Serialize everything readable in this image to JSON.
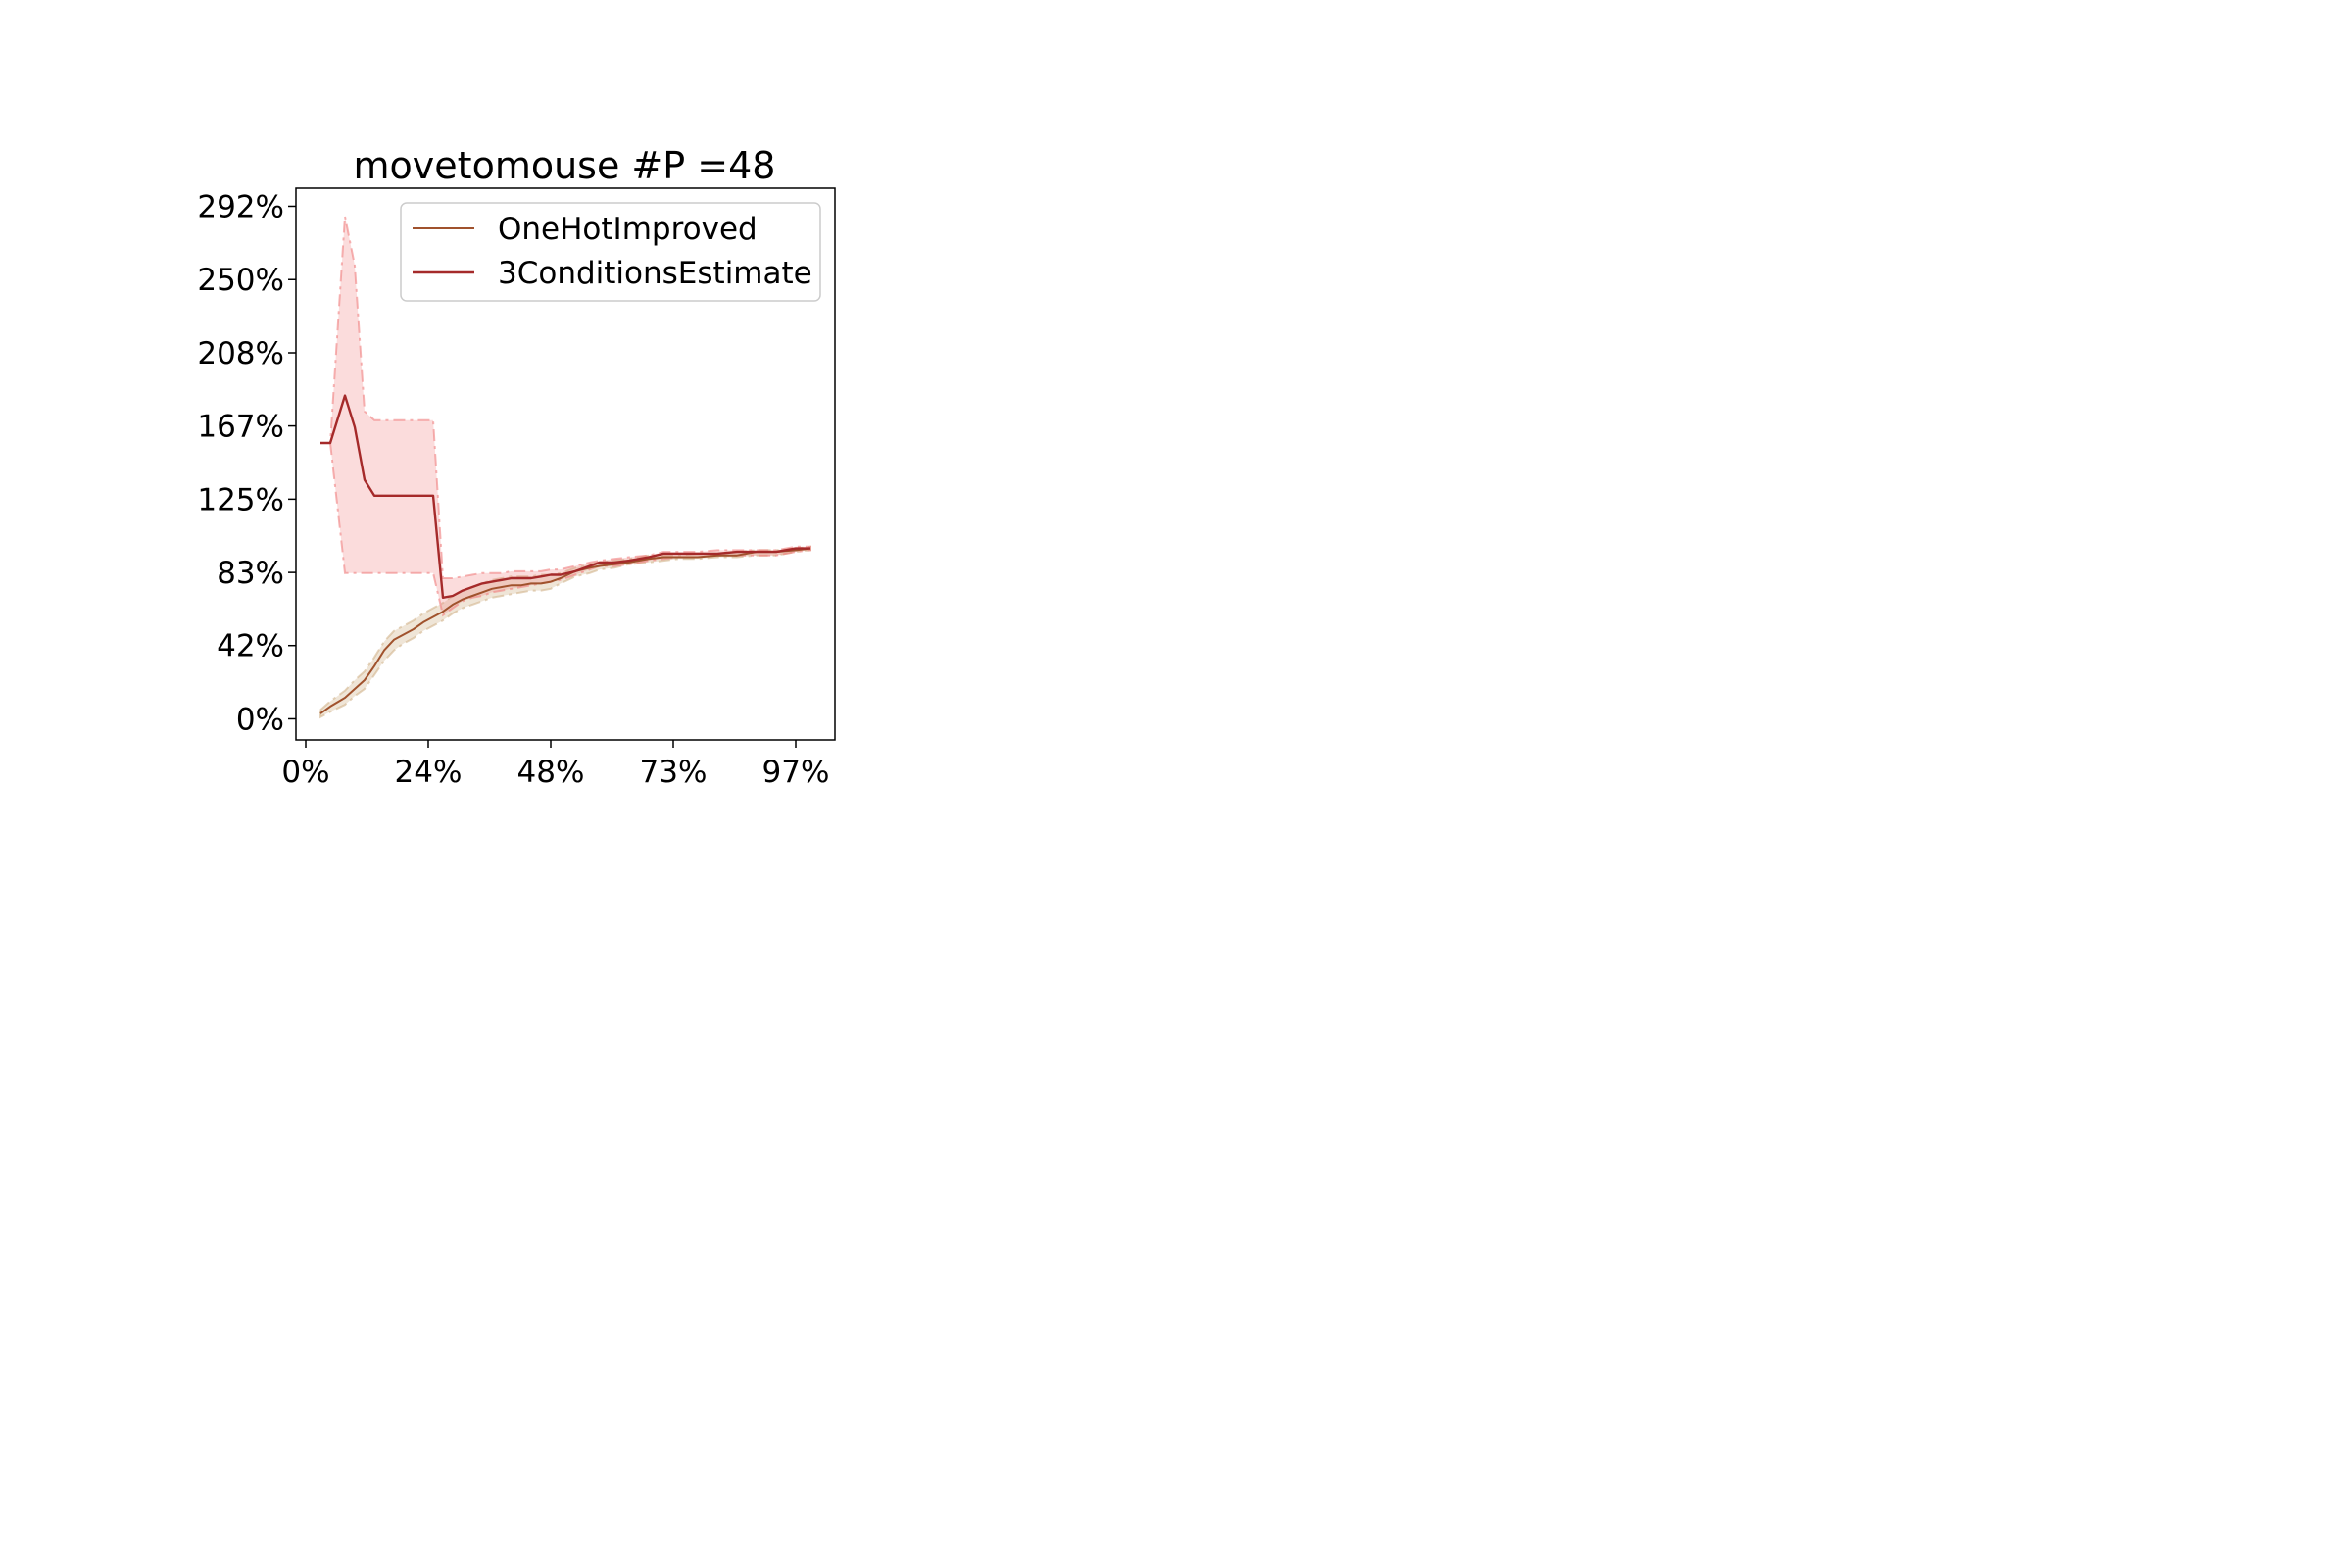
{
  "chart_data": {
    "type": "line",
    "title": "movetomouse #P =48",
    "xlabel": "",
    "ylabel": "",
    "xlim": [
      -2,
      108
    ],
    "ylim": [
      -12,
      302
    ],
    "x_ticks": [
      {
        "value": 0,
        "label": "0%"
      },
      {
        "value": 25,
        "label": "24%"
      },
      {
        "value": 50,
        "label": "48%"
      },
      {
        "value": 75,
        "label": "73%"
      },
      {
        "value": 100,
        "label": "97%"
      }
    ],
    "y_ticks": [
      {
        "value": 0,
        "label": "0%"
      },
      {
        "value": 41.7,
        "label": "42%"
      },
      {
        "value": 83.3,
        "label": "83%"
      },
      {
        "value": 125,
        "label": "125%"
      },
      {
        "value": 166.7,
        "label": "167%"
      },
      {
        "value": 208.3,
        "label": "208%"
      },
      {
        "value": 250,
        "label": "250%"
      },
      {
        "value": 291.7,
        "label": "292%"
      }
    ],
    "grid": false,
    "legend_position": "upper-right",
    "series": [
      {
        "name": "OneHotImproved",
        "color": "#a0522d",
        "band_color": "#d2b48c",
        "x": [
          3,
          5,
          8,
          10,
          12,
          14,
          16,
          18,
          20,
          22,
          24,
          26,
          28,
          30,
          32,
          34,
          36,
          38,
          40,
          42,
          44,
          46,
          48,
          50,
          52,
          55,
          58,
          60,
          63,
          66,
          70,
          73,
          76,
          80,
          84,
          88,
          92,
          96,
          100,
          103
        ],
        "y": [
          3,
          7,
          12,
          17,
          22,
          30,
          39,
          45,
          48,
          51,
          55,
          58,
          61,
          65,
          68,
          70,
          72,
          74,
          75,
          76,
          76,
          77,
          77,
          78,
          80,
          84,
          86,
          87,
          88,
          89,
          91,
          92,
          92,
          92,
          93,
          93,
          95,
          95,
          96,
          97
        ],
        "lower": [
          1,
          4,
          8,
          13,
          17,
          25,
          33,
          39,
          43,
          46,
          50,
          53,
          56,
          60,
          63,
          65,
          67,
          69,
          70,
          71,
          72,
          73,
          73,
          74,
          77,
          81,
          83,
          85,
          86,
          88,
          89,
          90,
          91,
          91,
          92,
          92,
          93,
          93,
          95,
          96
        ],
        "upper": [
          5,
          10,
          16,
          22,
          27,
          35,
          44,
          50,
          53,
          56,
          60,
          63,
          66,
          70,
          73,
          75,
          77,
          79,
          80,
          81,
          81,
          81,
          82,
          82,
          83,
          86,
          88,
          89,
          90,
          91,
          93,
          93,
          93,
          94,
          94,
          95,
          96,
          96,
          97,
          98
        ]
      },
      {
        "name": "3ConditionsEstimate",
        "color": "#a52a2a",
        "band_color": "#f08080",
        "x": [
          3,
          5,
          8,
          10,
          12,
          14,
          16,
          18,
          20,
          22,
          24,
          26,
          28,
          30,
          32,
          34,
          36,
          38,
          40,
          42,
          44,
          46,
          48,
          50,
          52,
          55,
          58,
          60,
          63,
          66,
          70,
          73,
          76,
          80,
          84,
          88,
          92,
          96,
          100,
          103
        ],
        "y": [
          157,
          157,
          184,
          166,
          136,
          127,
          127,
          127,
          127,
          127,
          127,
          127,
          69,
          70,
          73,
          75,
          77,
          78,
          79,
          80,
          80,
          80,
          81,
          82,
          82,
          84,
          87,
          89,
          89,
          90,
          92,
          94,
          94,
          94,
          94,
          95,
          95,
          95,
          97,
          97
        ],
        "lower": [
          157,
          157,
          83,
          83,
          83,
          83,
          83,
          83,
          83,
          83,
          83,
          83,
          59,
          63,
          67,
          69,
          70,
          72,
          73,
          74,
          75,
          76,
          77,
          78,
          79,
          82,
          85,
          87,
          87,
          88,
          90,
          91,
          92,
          92,
          93,
          93,
          93,
          93,
          95,
          96
        ],
        "upper": [
          157,
          157,
          286,
          258,
          175,
          170,
          170,
          170,
          170,
          170,
          170,
          170,
          80,
          80,
          81,
          82,
          83,
          83,
          83,
          84,
          84,
          84,
          84,
          85,
          85,
          87,
          89,
          90,
          91,
          92,
          93,
          95,
          95,
          95,
          96,
          96,
          96,
          96,
          98,
          98
        ]
      }
    ]
  }
}
